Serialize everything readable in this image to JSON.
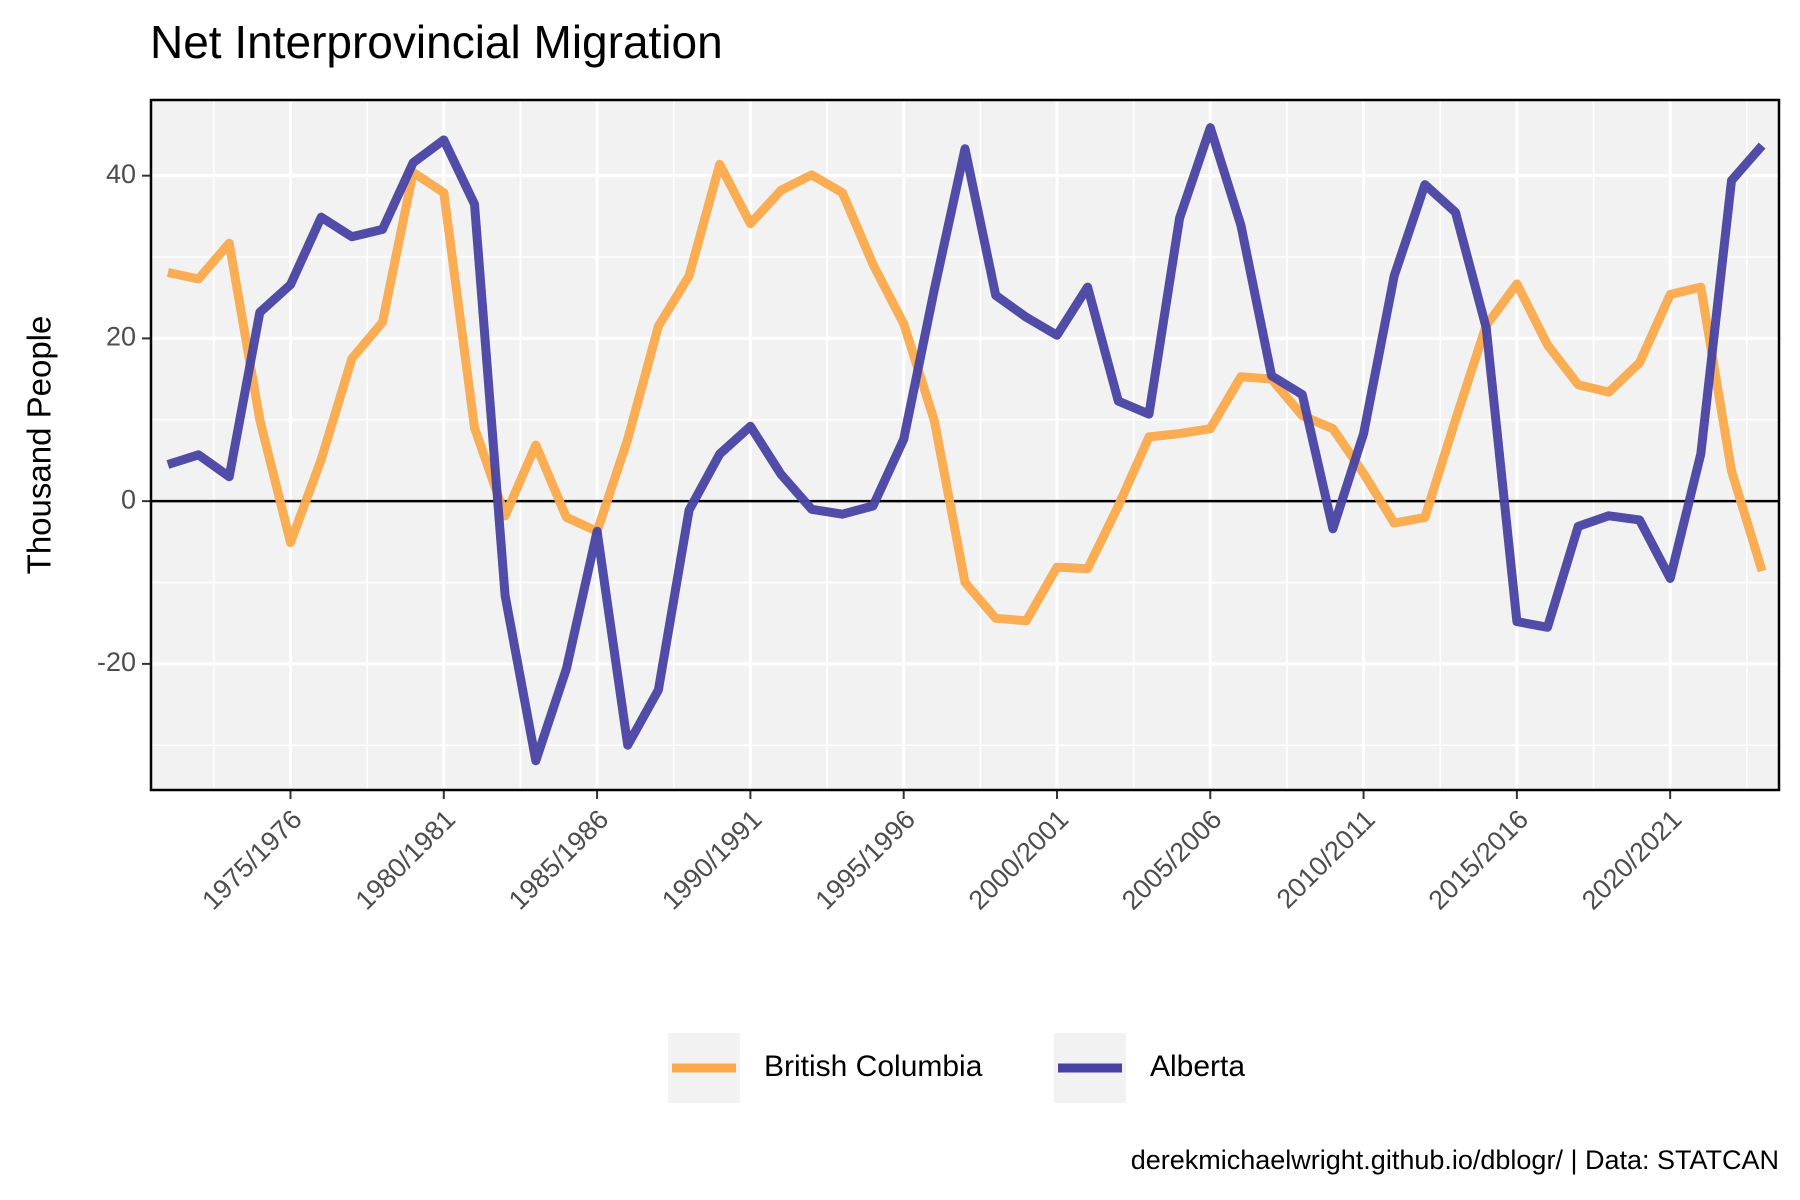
{
  "chart_data": {
    "type": "line",
    "title": "Net Interprovincial Migration",
    "ylabel": "Thousand People",
    "caption": "derekmichaelwright.github.io/dblogr/ | Data: STATCAN",
    "categories": [
      null,
      null,
      null,
      null,
      "1975/1976",
      null,
      null,
      null,
      null,
      "1980/1981",
      null,
      null,
      null,
      null,
      "1985/1986",
      null,
      null,
      null,
      null,
      "1990/1991",
      null,
      null,
      null,
      null,
      "1995/1996",
      null,
      null,
      null,
      null,
      "2000/2001",
      null,
      null,
      null,
      null,
      "2005/2006",
      null,
      null,
      null,
      null,
      "2010/2011",
      null,
      null,
      null,
      null,
      "2015/2016",
      null,
      null,
      null,
      null,
      "2020/2021",
      null,
      null,
      null
    ],
    "series": [
      {
        "name": "British Columbia",
        "color": "#fba94a",
        "values": [
          28.1,
          27.3,
          31.7,
          10.0,
          -5.1,
          5.1,
          17.5,
          22.0,
          40.4,
          37.9,
          9.0,
          -1.8,
          6.9,
          -2.0,
          -3.7,
          7.6,
          21.5,
          27.7,
          41.4,
          34.1,
          38.2,
          40.1,
          37.9,
          29.1,
          21.8,
          9.9,
          -10.0,
          -14.4,
          -14.7,
          -8.1,
          -8.3,
          -0.6,
          7.9,
          8.3,
          8.9,
          15.3,
          15.0,
          10.5,
          8.9,
          3.4,
          -2.7,
          -2.0,
          10.0,
          21.6,
          26.7,
          19.2,
          14.3,
          13.4,
          17.0,
          25.4,
          26.3,
          3.7,
          -8.6
        ]
      },
      {
        "name": "Alberta",
        "color": "#4742a3",
        "values": [
          4.5,
          5.7,
          3.0,
          23.2,
          26.6,
          34.9,
          32.5,
          33.4,
          41.6,
          44.4,
          36.5,
          -11.6,
          -31.9,
          -20.6,
          -3.7,
          -30.0,
          -23.2,
          -1.1,
          5.8,
          9.2,
          3.3,
          -1.0,
          -1.6,
          -0.6,
          7.6,
          26.0,
          43.3,
          25.3,
          22.6,
          20.4,
          26.3,
          12.3,
          10.7,
          34.8,
          45.9,
          33.9,
          15.4,
          13.1,
          -3.4,
          8.3,
          27.7,
          38.9,
          35.5,
          21.3,
          -14.8,
          -15.5,
          -3.1,
          -1.8,
          -2.3,
          -9.5,
          5.8,
          39.4,
          43.7
        ]
      }
    ],
    "ylim": [
      -35.5,
      49.3
    ],
    "yticks": [
      -20,
      0,
      20,
      40
    ],
    "yminorticks": [
      -30,
      -10,
      10,
      30
    ],
    "reference_line": 0,
    "grid": true,
    "legend": "bottom"
  }
}
